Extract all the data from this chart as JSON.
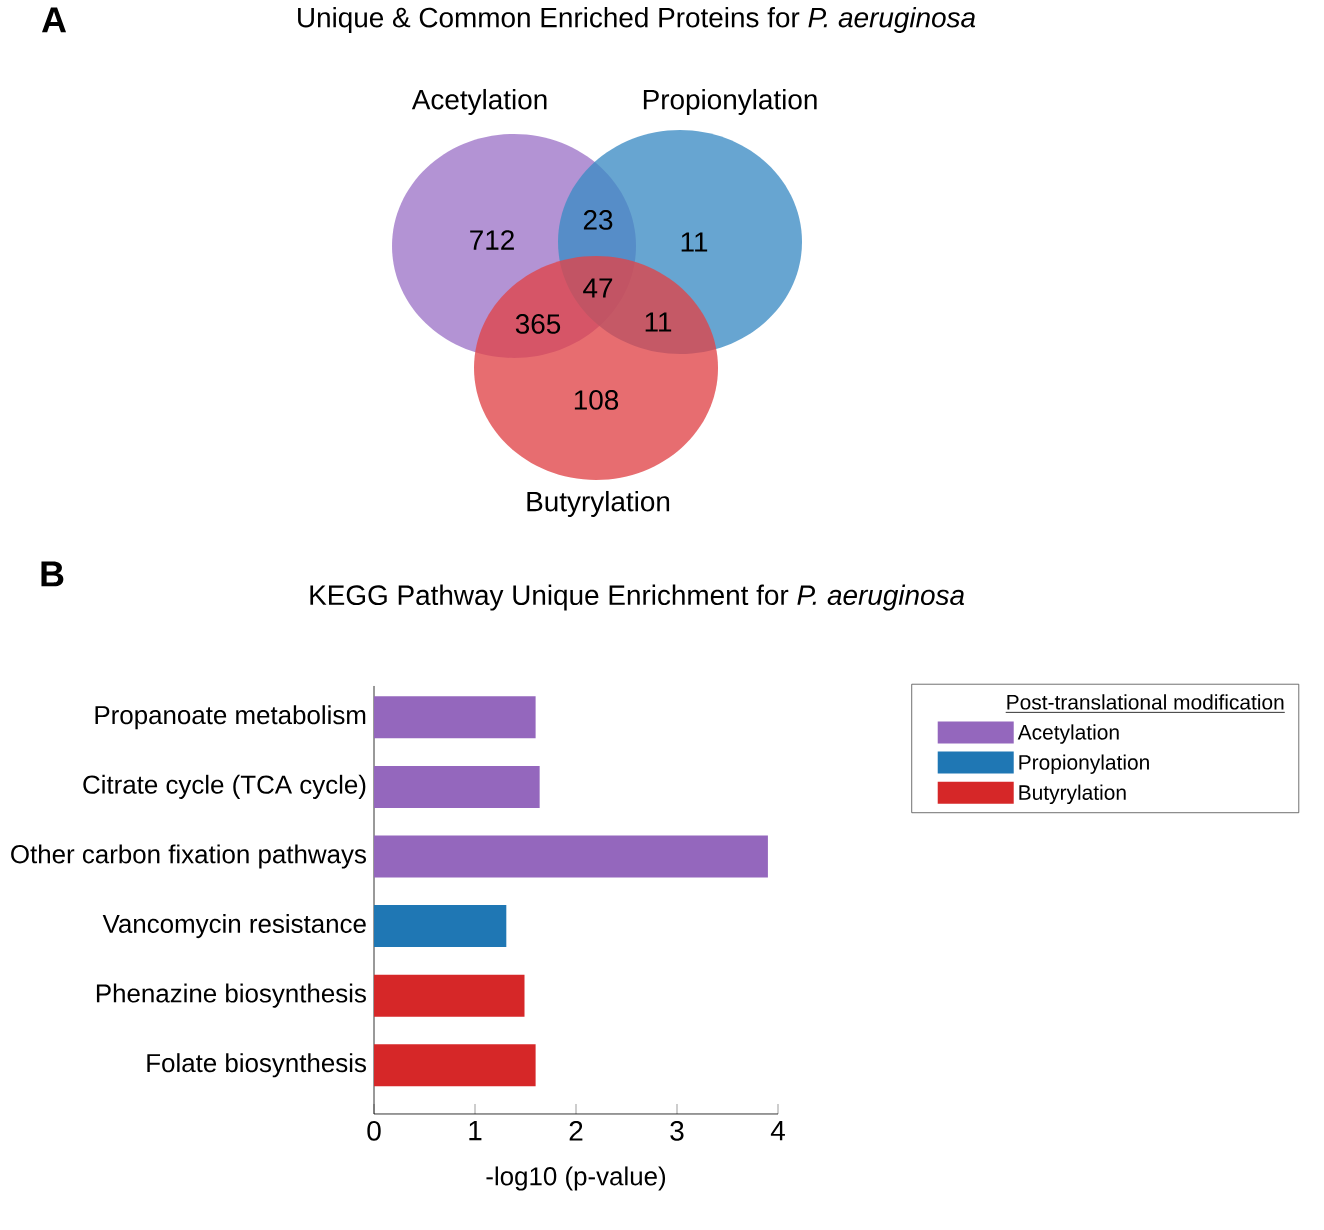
{
  "chart_data": [
    {
      "type": "other",
      "title": "Unique & Common Enriched Proteins for *P. aeruginosa*",
      "categories": [
        "Acetylation",
        "Propionylation",
        "Butyrylation"
      ],
      "colors": [
        "#9d74c8",
        "#3c8cc4",
        "#e04448"
      ],
      "annotations": [
        "A",
        "712",
        "23",
        "11",
        "47",
        "365",
        "11",
        "108"
      ]
    },
    {
      "type": "bar",
      "orientation": "horizontal",
      "title": "KEGG Pathway Unique Enrichment for *P. aeruginosa*",
      "categories": [
        "Propanoate metabolism",
        "Citrate cycle (TCA cycle)",
        "Other carbon fixation pathways",
        "Vancomycin resistance",
        "Phenazine biosynthesis",
        "Folate biosynthesis"
      ],
      "series": [
        {
          "name": "Acetylation",
          "color": "#9467bd",
          "values": [
            1.6,
            1.64,
            3.9,
            null,
            null,
            null
          ]
        },
        {
          "name": "Propionylation",
          "color": "#1f77b4",
          "values": [
            null,
            null,
            null,
            1.31,
            null,
            null
          ]
        },
        {
          "name": "Butyrylation",
          "color": "#d62728",
          "values": [
            null,
            null,
            null,
            null,
            1.49,
            1.6
          ]
        }
      ],
      "xlabel": "-log10 (p-value)",
      "xlim": [
        0,
        4
      ],
      "xticks": [
        0,
        1,
        2,
        3,
        4
      ],
      "legend": "right",
      "legend_title": "Post-translational modification",
      "annotations": [
        "B"
      ]
    }
  ]
}
